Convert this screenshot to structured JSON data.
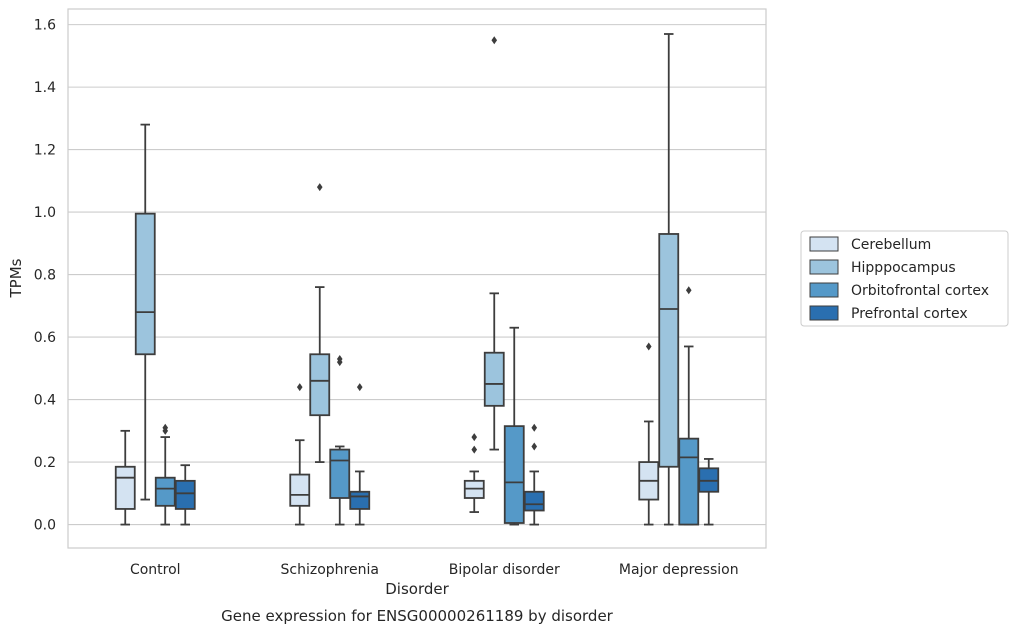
{
  "chart_data": {
    "type": "box",
    "caption": "Gene expression for ENSG00000261189 by disorder",
    "xlabel": "Disorder",
    "ylabel": "TPMs",
    "ylim": [
      -0.075,
      1.65
    ],
    "yticks": [
      "0.0",
      "0.2",
      "0.4",
      "0.6",
      "0.8",
      "1.0",
      "1.2",
      "1.4",
      "1.6"
    ],
    "ytick_values": [
      0,
      0.2,
      0.4,
      0.6,
      0.8,
      1.0,
      1.2,
      1.4,
      1.6
    ],
    "categories": [
      "Control",
      "Schizophrenia",
      "Bipolar disorder",
      "Major depression"
    ],
    "grid": "horizontal",
    "legend_position": "right",
    "series": [
      {
        "name": "Cerebellum",
        "color": "#d4e3f2",
        "boxes": [
          {
            "whislo": 0.0,
            "q1": 0.05,
            "med": 0.15,
            "q3": 0.185,
            "whishi": 0.3,
            "fliers": []
          },
          {
            "whislo": 0.0,
            "q1": 0.06,
            "med": 0.095,
            "q3": 0.16,
            "whishi": 0.27,
            "fliers": [
              0.44
            ]
          },
          {
            "whislo": 0.04,
            "q1": 0.085,
            "med": 0.115,
            "q3": 0.14,
            "whishi": 0.17,
            "fliers": [
              0.24,
              0.28
            ]
          },
          {
            "whislo": 0.0,
            "q1": 0.08,
            "med": 0.14,
            "q3": 0.2,
            "whishi": 0.33,
            "fliers": [
              0.57
            ]
          }
        ]
      },
      {
        "name": "Hipppocampus",
        "color": "#9cc4dd",
        "boxes": [
          {
            "whislo": 0.08,
            "q1": 0.545,
            "med": 0.68,
            "q3": 0.995,
            "whishi": 1.28,
            "fliers": []
          },
          {
            "whislo": 0.2,
            "q1": 0.35,
            "med": 0.46,
            "q3": 0.545,
            "whishi": 0.76,
            "fliers": [
              1.08
            ]
          },
          {
            "whislo": 0.24,
            "q1": 0.38,
            "med": 0.45,
            "q3": 0.55,
            "whishi": 0.74,
            "fliers": [
              1.55
            ]
          },
          {
            "whislo": 0.0,
            "q1": 0.185,
            "med": 0.69,
            "q3": 0.93,
            "whishi": 1.57,
            "fliers": []
          }
        ]
      },
      {
        "name": "Orbitofrontal cortex",
        "color": "#5599c8",
        "boxes": [
          {
            "whislo": 0.0,
            "q1": 0.06,
            "med": 0.115,
            "q3": 0.15,
            "whishi": 0.28,
            "fliers": [
              0.3,
              0.31
            ]
          },
          {
            "whislo": 0.0,
            "q1": 0.085,
            "med": 0.205,
            "q3": 0.24,
            "whishi": 0.25,
            "fliers": [
              0.52,
              0.53
            ]
          },
          {
            "whislo": 0.0,
            "q1": 0.005,
            "med": 0.135,
            "q3": 0.315,
            "whishi": 0.63,
            "fliers": []
          },
          {
            "whislo": 0.0,
            "q1": 0.0,
            "med": 0.215,
            "q3": 0.275,
            "whishi": 0.57,
            "fliers": [
              0.75
            ]
          }
        ]
      },
      {
        "name": "Prefrontal cortex",
        "color": "#2a6fb0",
        "boxes": [
          {
            "whislo": 0.0,
            "q1": 0.05,
            "med": 0.1,
            "q3": 0.14,
            "whishi": 0.19,
            "fliers": []
          },
          {
            "whislo": 0.0,
            "q1": 0.05,
            "med": 0.09,
            "q3": 0.105,
            "whishi": 0.17,
            "fliers": [
              0.44
            ]
          },
          {
            "whislo": 0.0,
            "q1": 0.045,
            "med": 0.065,
            "q3": 0.105,
            "whishi": 0.17,
            "fliers": [
              0.25,
              0.31
            ]
          },
          {
            "whislo": 0.0,
            "q1": 0.105,
            "med": 0.14,
            "q3": 0.18,
            "whishi": 0.21,
            "fliers": []
          }
        ]
      }
    ]
  }
}
